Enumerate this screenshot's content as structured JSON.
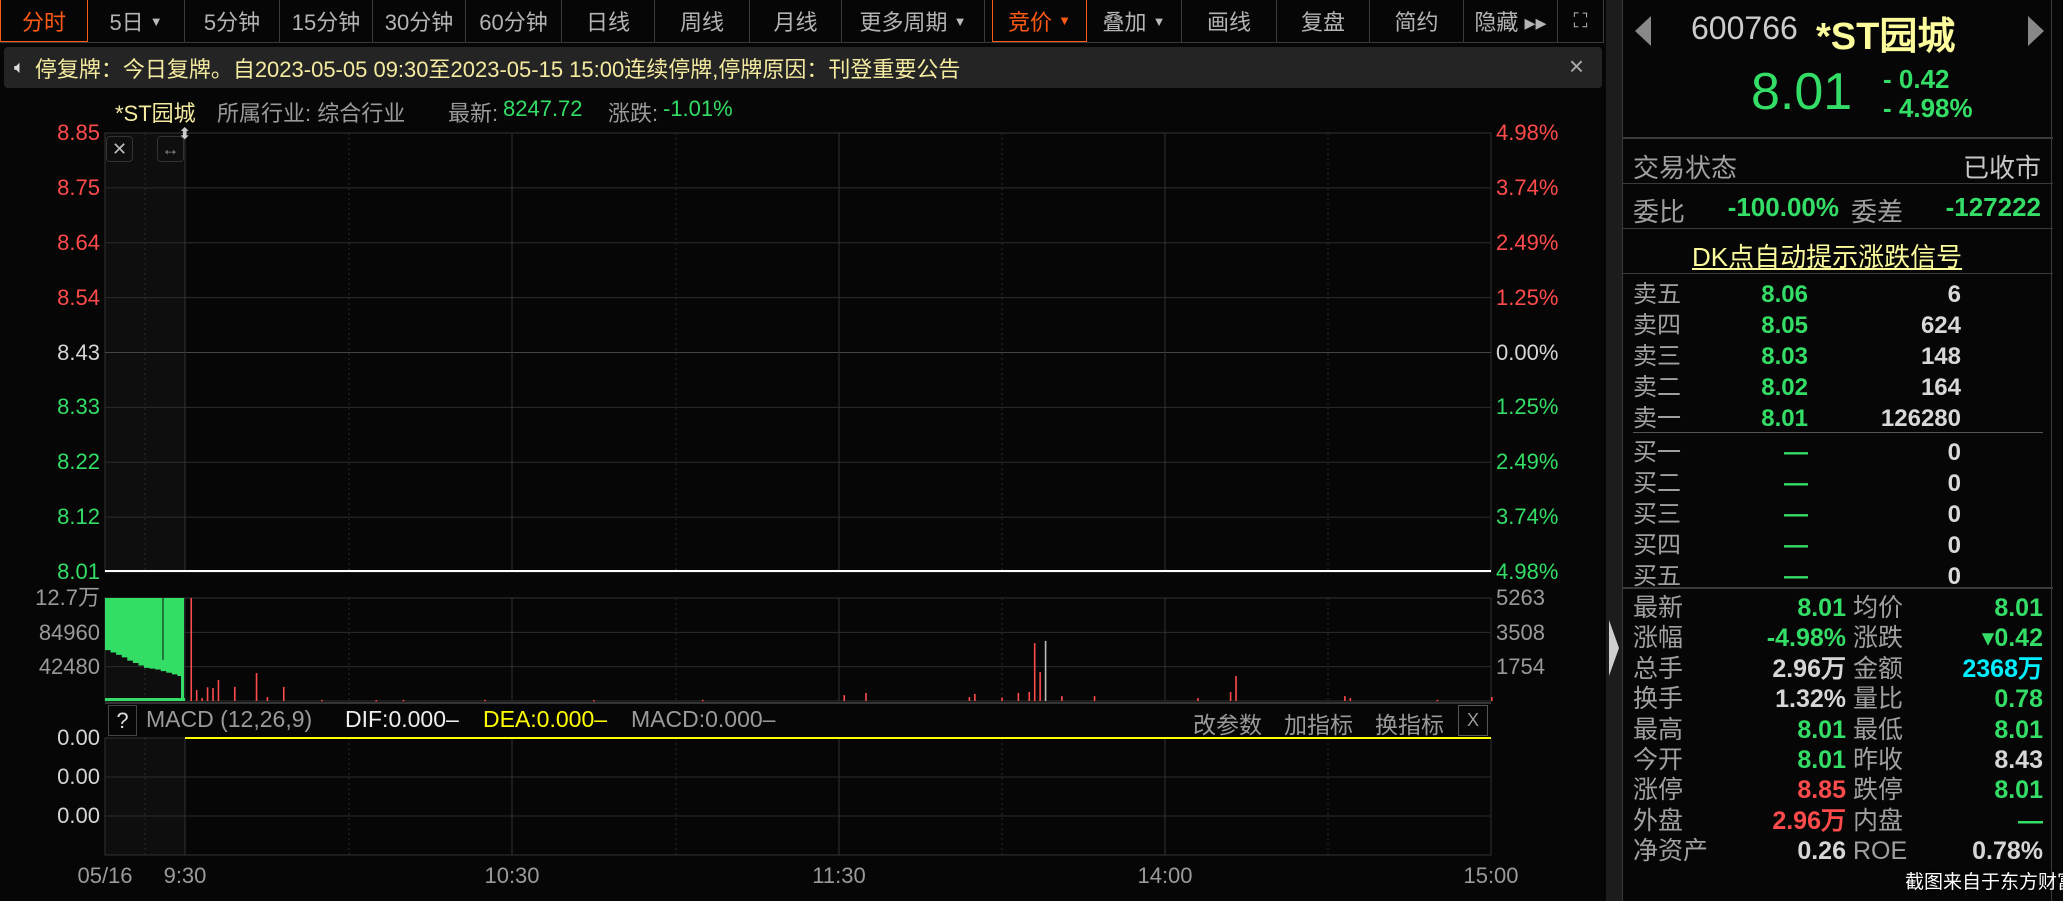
{
  "toolbar": {
    "items": [
      {
        "label": "分时",
        "active": true,
        "caret": false
      },
      {
        "label": "5日",
        "caret": true
      },
      {
        "label": "5分钟"
      },
      {
        "label": "15分钟"
      },
      {
        "label": "30分钟"
      },
      {
        "label": "60分钟"
      },
      {
        "label": "日线"
      },
      {
        "label": "周线"
      },
      {
        "label": "月线"
      },
      {
        "label": "更多周期",
        "caret": true
      },
      {
        "label": "竞价",
        "active": true,
        "caret": true
      },
      {
        "label": "叠加",
        "caret": true
      },
      {
        "label": "画线"
      },
      {
        "label": "复盘"
      },
      {
        "label": "简约"
      },
      {
        "label": "隐藏 ▸▸"
      }
    ],
    "fullscreen_icon": "expand-icon"
  },
  "notice": {
    "text": "停复牌：今日复牌。自2023-05-05 09:30至2023-05-15 15:00连续停牌,停牌原因：刊登重要公告",
    "close": "×"
  },
  "info": {
    "name": "*ST园城",
    "industry": "所属行业: 综合行业",
    "latest_label": "最新:",
    "latest_value": "8247.72",
    "change_label": "涨跌:",
    "change_value": "-1.01%"
  },
  "colors": {
    "up": "#ff4b4b",
    "down": "#33dd66",
    "volume_auction": "#33dd66",
    "macd_dea": "#ffff00",
    "amount": "#00f0ff"
  },
  "chart_data": [
    {
      "type": "line",
      "title": "",
      "price_axis": [
        "8.85",
        "8.75",
        "8.64",
        "8.54",
        "8.43",
        "8.33",
        "8.22",
        "8.12",
        "8.01"
      ],
      "pct_axis": [
        "4.98%",
        "3.74%",
        "2.49%",
        "1.25%",
        "0.00%",
        "1.25%",
        "2.49%",
        "3.74%",
        "4.98%"
      ],
      "ylim": [
        8.01,
        8.85
      ],
      "prev_close": 8.43,
      "price_series": {
        "x": [
          "09:30",
          "15:00"
        ],
        "y": [
          8.01,
          8.01
        ]
      },
      "x_ticks": [
        "05/16",
        "9:30",
        "10:30",
        "11:30",
        "14:00",
        "15:00"
      ]
    },
    {
      "type": "bar",
      "title": "",
      "left_axis": [
        "12.7万",
        "84960",
        "42480"
      ],
      "right_axis": [
        "5263",
        "3508",
        "1754"
      ],
      "auction_ylim": [
        0,
        127440
      ],
      "ylim": [
        0,
        5263
      ],
      "auction_profile": [
        63000,
        60000,
        57000,
        54000,
        50000,
        47000,
        44000,
        41000,
        40000,
        39000,
        37000,
        35000,
        33000,
        31000
      ],
      "volumes": [
        [
          "09:31",
          5263
        ],
        [
          "09:32",
          560
        ],
        [
          "09:33",
          150
        ],
        [
          "09:34",
          700
        ],
        [
          "09:35",
          660
        ],
        [
          "09:36",
          1070
        ],
        [
          "09:39",
          720
        ],
        [
          "09:43",
          1430
        ],
        [
          "09:45",
          200
        ],
        [
          "09:48",
          720
        ],
        [
          "09:55",
          60
        ],
        [
          "10:05",
          50
        ],
        [
          "10:10",
          60
        ],
        [
          "10:25",
          60
        ],
        [
          "10:45",
          50
        ],
        [
          "11:05",
          60
        ],
        [
          "13:01",
          300
        ],
        [
          "13:05",
          410
        ],
        [
          "13:24",
          200
        ],
        [
          "13:25",
          360
        ],
        [
          "13:30",
          180
        ],
        [
          "13:33",
          410
        ],
        [
          "13:35",
          460
        ],
        [
          "13:36",
          2960
        ],
        [
          "13:37",
          1480
        ],
        [
          "13:38",
          3070
        ],
        [
          "13:41",
          250
        ],
        [
          "13:47",
          250
        ],
        [
          "14:06",
          150
        ],
        [
          "14:12",
          460
        ],
        [
          "14:13",
          1280
        ],
        [
          "14:33",
          250
        ],
        [
          "14:34",
          150
        ],
        [
          "14:50",
          60
        ],
        [
          "15:00",
          200
        ]
      ]
    },
    {
      "type": "line",
      "title": "MACD",
      "name": "MACD (12,26,9)",
      "left_axis": [
        "0.00",
        "0.00",
        "0.00"
      ],
      "dif": "DIF:0.000–",
      "dea": "DEA:0.000–",
      "macd": "MACD:0.000–",
      "values": {
        "dif": 0,
        "dea": 0,
        "macd": 0
      }
    }
  ],
  "macd_bar": {
    "help": "?",
    "actions": [
      "改参数",
      "加指标",
      "换指标"
    ],
    "close": "X"
  },
  "quote": {
    "code": "600766",
    "name": "*ST园城",
    "price": "8.01",
    "change": "- 0.42",
    "change_pct": "- 4.98%",
    "status_label": "交易状态",
    "status": "已收市",
    "wb_label": "委比",
    "wb": "-100.00%",
    "wc_label": "委差",
    "wc": "-127222",
    "dk_link": "DK点自动提示涨跌信号",
    "asks": [
      {
        "label": "卖五",
        "price": "8.06",
        "vol": "6"
      },
      {
        "label": "卖四",
        "price": "8.05",
        "vol": "624"
      },
      {
        "label": "卖三",
        "price": "8.03",
        "vol": "148"
      },
      {
        "label": "卖二",
        "price": "8.02",
        "vol": "164"
      },
      {
        "label": "卖一",
        "price": "8.01",
        "vol": "126280"
      }
    ],
    "bids": [
      {
        "label": "买一",
        "price": "—",
        "vol": "0"
      },
      {
        "label": "买二",
        "price": "—",
        "vol": "0"
      },
      {
        "label": "买三",
        "price": "—",
        "vol": "0"
      },
      {
        "label": "买四",
        "price": "—",
        "vol": "0"
      },
      {
        "label": "买五",
        "price": "—",
        "vol": "0"
      }
    ],
    "stats": [
      {
        "l1": "最新",
        "v1": "8.01",
        "c1": "green",
        "l2": "均价",
        "v2": "8.01",
        "c2": "green"
      },
      {
        "l1": "涨幅",
        "v1": "-4.98%",
        "c1": "green",
        "l2": "涨跌",
        "v2": "▾0.42",
        "c2": "green"
      },
      {
        "l1": "总手",
        "v1": "2.96万",
        "c1": "white",
        "l2": "金额",
        "v2": "2368万",
        "c2": "cyan"
      },
      {
        "l1": "换手",
        "v1": "1.32%",
        "c1": "white",
        "l2": "量比",
        "v2": "0.78",
        "c2": "green"
      },
      {
        "l1": "最高",
        "v1": "8.01",
        "c1": "green",
        "l2": "最低",
        "v2": "8.01",
        "c2": "green"
      },
      {
        "l1": "今开",
        "v1": "8.01",
        "c1": "green",
        "l2": "昨收",
        "v2": "8.43",
        "c2": "white"
      },
      {
        "l1": "涨停",
        "v1": "8.85",
        "c1": "red",
        "l2": "跌停",
        "v2": "8.01",
        "c2": "green"
      },
      {
        "l1": "外盘",
        "v1": "2.96万",
        "c1": "red",
        "l2": "内盘",
        "v2": "—",
        "c2": "green"
      },
      {
        "l1": "净资产",
        "v1": "0.26",
        "c1": "white",
        "l2": "ROE",
        "v2": "0.78%",
        "c2": "white"
      }
    ]
  },
  "watermark": "截图来自于东方财富"
}
